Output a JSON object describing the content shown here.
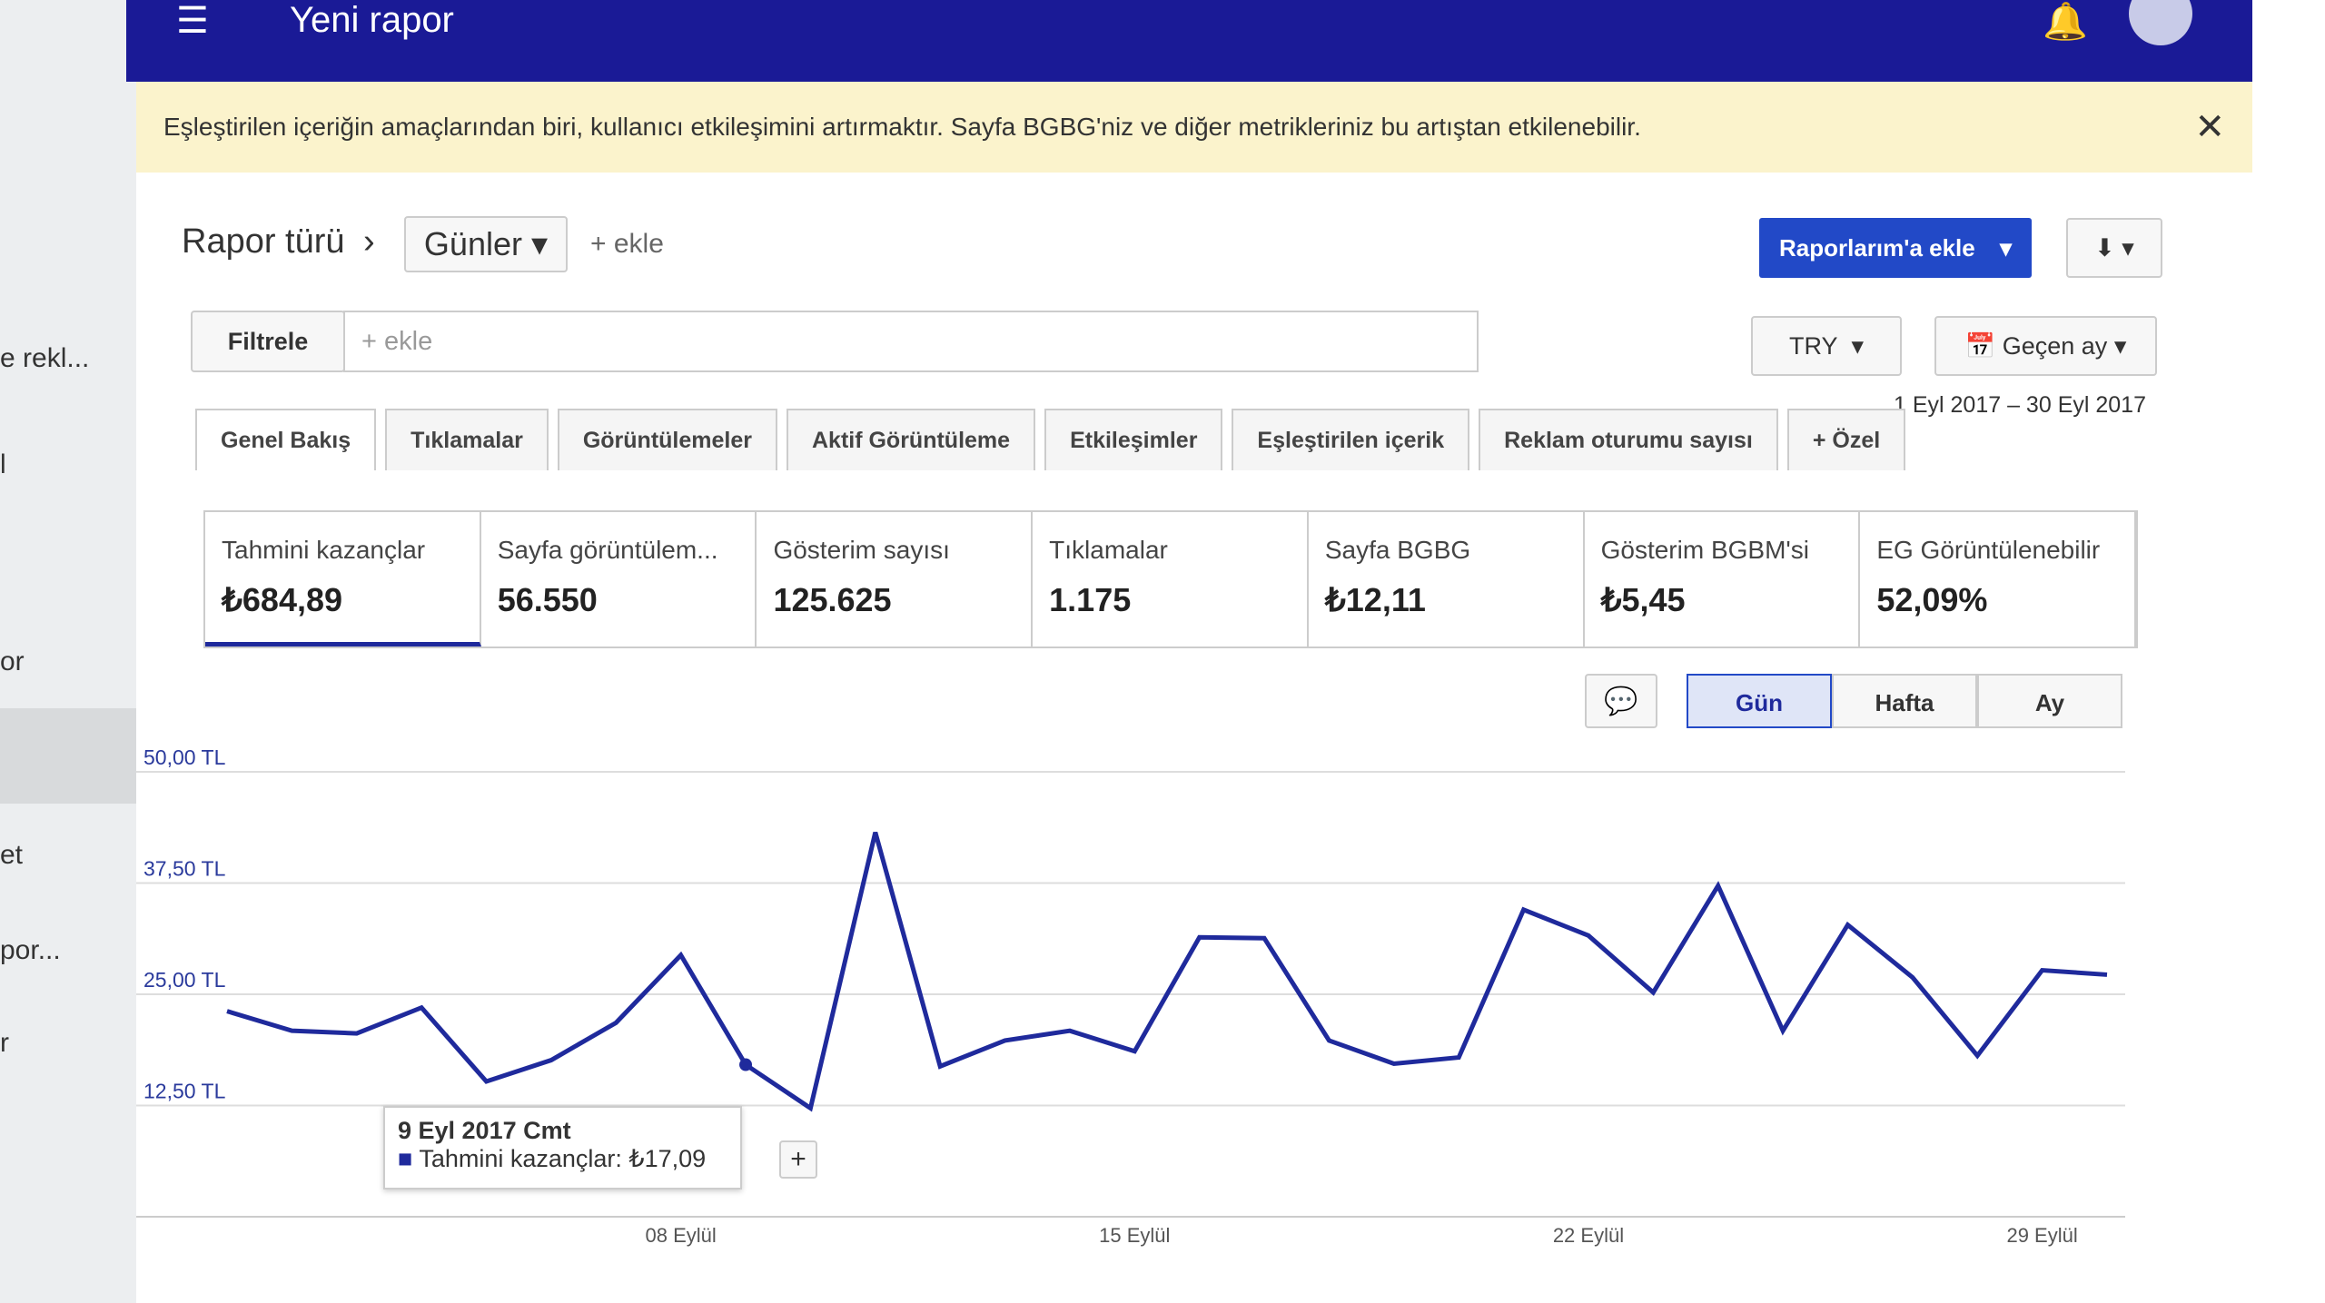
{
  "header": {
    "title": "Yeni rapor"
  },
  "sidebar": {
    "items": [
      "e rekl...",
      "l",
      "or",
      "et",
      "por...",
      "r"
    ]
  },
  "banner": {
    "text": "Eşleştirilen içeriğin amaçlarından biri, kullanıcı etkileşimini artırmaktır. Sayfa BGBG'niz ve diğer metrikleriniz bu artıştan etkilenebilir."
  },
  "toolbar": {
    "report_type": "Rapor türü",
    "dimension": "Günler",
    "add": "+ ekle",
    "add_report": "Raporlarım'a ekle",
    "filter": "Filtrele",
    "filter_placeholder": "+ ekle",
    "currency": "TRY",
    "period": "Geçen ay",
    "date_range": "1 Eyl 2017 – 30 Eyl 2017"
  },
  "tabs": [
    "Genel Bakış",
    "Tıklamalar",
    "Görüntülemeler",
    "Aktif Görüntüleme",
    "Etkileşimler",
    "Eşleştirilen içerik",
    "Reklam oturumu sayısı",
    "+ Özel"
  ],
  "metrics": [
    {
      "label": "Tahmini kazançlar",
      "value": "₺684,89"
    },
    {
      "label": "Sayfa görüntülem...",
      "value": "56.550"
    },
    {
      "label": "Gösterim sayısı",
      "value": "125.625"
    },
    {
      "label": "Tıklamalar",
      "value": "1.175"
    },
    {
      "label": "Sayfa BGBG",
      "value": "₺12,11"
    },
    {
      "label": "Gösterim BGBM'si",
      "value": "₺5,45"
    },
    {
      "label": "EG Görüntülenebilir",
      "value": "52,09%"
    }
  ],
  "granularity": [
    "Gün",
    "Hafta",
    "Ay"
  ],
  "tooltip": {
    "date": "9 Eyl 2017 Cmt",
    "label": "Tahmini kazançlar: ₺17,09"
  },
  "chart_data": {
    "type": "line",
    "categories": [
      null,
      null,
      null,
      null,
      null,
      null,
      null,
      "08 Eylül",
      null,
      null,
      null,
      null,
      null,
      null,
      "15 Eylül",
      null,
      null,
      null,
      null,
      null,
      null,
      "22 Eylül",
      null,
      null,
      null,
      null,
      null,
      null,
      "29 Eylül",
      null
    ],
    "values": [
      23.1,
      20.9,
      20.6,
      23.5,
      15.2,
      17.6,
      21.8,
      29.4,
      17.09,
      12.2,
      43.2,
      16.9,
      19.8,
      20.9,
      18.6,
      31.4,
      31.3,
      19.8,
      17.2,
      17.9,
      34.5,
      31.6,
      25.2,
      37.2,
      20.9,
      32.8,
      26.9,
      18.1,
      27.7,
      27.2
    ],
    "color": "#1f2a9c",
    "ylim": [
      0,
      50
    ],
    "yticks": [
      {
        "value": 12.5,
        "label": "12,50 TL"
      },
      {
        "value": 25,
        "label": "25,00 TL"
      },
      {
        "value": 37.5,
        "label": "37,50 TL"
      },
      {
        "value": 50,
        "label": "50,00 TL"
      }
    ],
    "grid": true
  }
}
